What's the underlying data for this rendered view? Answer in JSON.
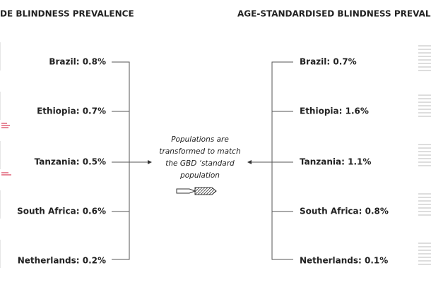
{
  "left": {
    "header": "DE BLINDNESS PREVALENCE",
    "items": [
      "Brazil: 0.8%",
      "Ethiopia: 0.7%",
      "Tanzania: 0.5%",
      "South Africa: 0.6%",
      "Netherlands: 0.2%"
    ]
  },
  "right": {
    "header": "AGE-STANDARDISED BLINDNESS PREVALE",
    "items": [
      "Brazil: 0.7%",
      "Ethiopia: 1.6%",
      "Tanzania: 1.1%",
      "South Africa: 0.8%",
      "Netherlands: 0.1%"
    ]
  },
  "center": {
    "lines": [
      "Populations are",
      "transformed to match",
      "the GBD ‘standard",
      "population"
    ]
  }
}
